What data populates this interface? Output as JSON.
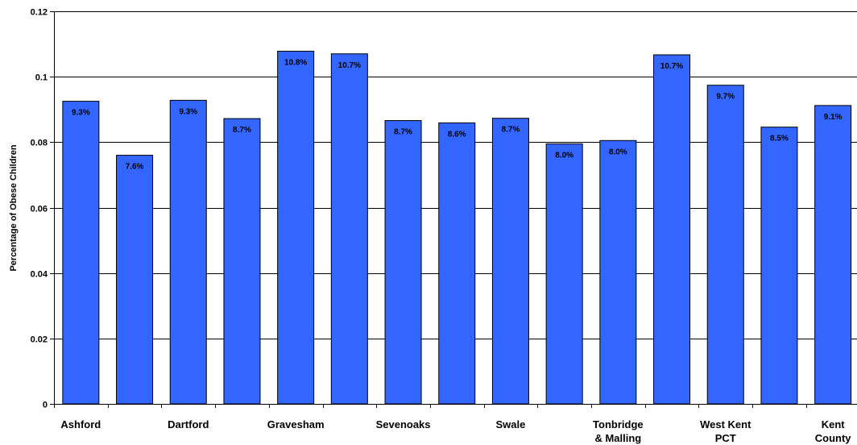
{
  "chart_data": {
    "type": "bar",
    "title": "",
    "xlabel": "",
    "ylabel": "Percentage of Obese Children",
    "ylim": [
      0,
      0.12
    ],
    "yticks": [
      "0",
      "0.02",
      "0.04",
      "0.06",
      "0.08",
      "0.1",
      "0.12"
    ],
    "grid": true,
    "legend": "none",
    "bar_color": "#3366FF",
    "categories": [
      "Ashford",
      "",
      "Dartford",
      "",
      "Gravesham",
      "",
      "Sevenoaks",
      "",
      "Swale",
      "",
      "Tonbridge & Malling",
      "",
      "West Kent PCT",
      "",
      "Kent County"
    ],
    "category_lines": [
      [
        "Ashford"
      ],
      [],
      [
        "Dartford"
      ],
      [],
      [
        "Gravesham"
      ],
      [],
      [
        "Sevenoaks"
      ],
      [],
      [
        "Swale"
      ],
      [],
      [
        "Tonbridge",
        "& Malling"
      ],
      [],
      [
        "West Kent",
        "PCT"
      ],
      [],
      [
        "Kent",
        "County"
      ]
    ],
    "values": [
      0.0925,
      0.076,
      0.0928,
      0.0872,
      0.1078,
      0.107,
      0.0866,
      0.0859,
      0.0873,
      0.0795,
      0.0805,
      0.1067,
      0.0974,
      0.0846,
      0.0912
    ],
    "data_labels": [
      "9.3%",
      "7.6%",
      "9.3%",
      "8.7%",
      "10.8%",
      "10.7%",
      "8.7%",
      "8.6%",
      "8.7%",
      "8.0%",
      "8.0%",
      "10.7%",
      "9.7%",
      "8.5%",
      "9.1%"
    ]
  }
}
